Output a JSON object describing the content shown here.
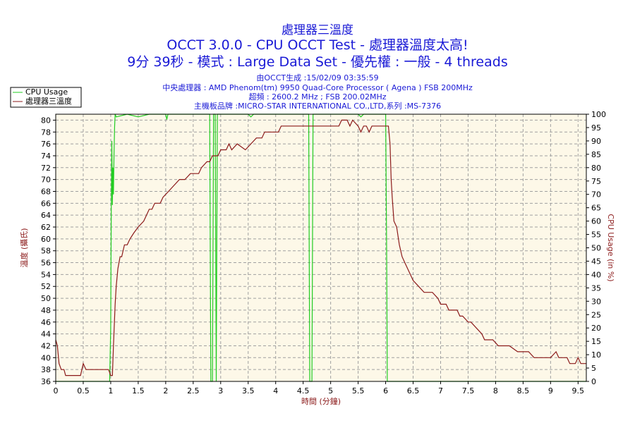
{
  "header": {
    "title1": "處理器三溫度",
    "title2": "OCCT 3.0.0 - CPU OCCT Test - 處理器溫度太高!",
    "title3": "9分 39秒 - 模式 : Large Data Set - 優先權 : 一般 - 4 threads",
    "info1": "由OCCT生成 :15/02/09 03:35:59",
    "info2": "中央處理器 : AMD Phenom(tm) 9950 Quad-Core Processor ( Agena ) FSB 200MHz",
    "info3": "超頻 : 2600.2 MHz ; FSB 200.02MHz",
    "info4": "主機板品牌 :MICRO-STAR INTERNATIONAL CO.,LTD,系列 :MS-7376"
  },
  "colors": {
    "temp": "#8b1a1a",
    "usage": "#22cc22",
    "plot_bg": "#fdf8e8",
    "grid": "#a0a0a0"
  },
  "chart_data": {
    "type": "line",
    "xlabel": "時間 (分鐘)",
    "ylabel_left": "溫度 (攝氏)",
    "ylabel_right": "CPU Usage (in %)",
    "xlim": [
      0,
      9.65
    ],
    "ylim_left": [
      36,
      81
    ],
    "ylim_right": [
      0,
      100
    ],
    "x_ticks": [
      "0",
      "0.5",
      "1",
      "1.5",
      "2",
      "2.5",
      "3",
      "3.5",
      "4",
      "4.5",
      "5",
      "5.5",
      "6",
      "6.5",
      "7",
      "7.5",
      "8",
      "8.5",
      "9",
      "9.5"
    ],
    "y_left_ticks": [
      "36",
      "38",
      "40",
      "42",
      "44",
      "46",
      "48",
      "50",
      "52",
      "54",
      "56",
      "58",
      "60",
      "62",
      "64",
      "66",
      "68",
      "70",
      "72",
      "74",
      "76",
      "78",
      "80"
    ],
    "y_right_ticks": [
      "0",
      "5",
      "10",
      "15",
      "20",
      "25",
      "30",
      "35",
      "40",
      "45",
      "50",
      "55",
      "60",
      "65",
      "70",
      "75",
      "80",
      "85",
      "90",
      "95",
      "100"
    ],
    "grid": true,
    "legend_position": "top-left",
    "series": [
      {
        "name": "CPU Usage",
        "axis": "right",
        "points": [
          [
            0,
            0
          ],
          [
            0.98,
            0
          ],
          [
            1.0,
            20
          ],
          [
            1.01,
            65
          ],
          [
            1.02,
            90
          ],
          [
            1.03,
            66
          ],
          [
            1.04,
            80
          ],
          [
            1.05,
            70
          ],
          [
            1.06,
            85
          ],
          [
            1.07,
            95
          ],
          [
            1.08,
            100
          ],
          [
            1.1,
            99
          ],
          [
            1.3,
            100
          ],
          [
            1.5,
            99
          ],
          [
            1.7,
            100
          ],
          [
            2.0,
            100
          ],
          [
            2.02,
            98
          ],
          [
            2.04,
            100
          ],
          [
            2.8,
            100
          ],
          [
            2.82,
            0
          ],
          [
            2.85,
            0
          ],
          [
            2.87,
            100
          ],
          [
            2.9,
            100
          ],
          [
            2.92,
            0
          ],
          [
            2.94,
            100
          ],
          [
            3.5,
            100
          ],
          [
            3.55,
            99
          ],
          [
            3.6,
            100
          ],
          [
            4.6,
            100
          ],
          [
            4.62,
            0
          ],
          [
            4.66,
            0
          ],
          [
            4.68,
            100
          ],
          [
            5.5,
            100
          ],
          [
            5.55,
            99
          ],
          [
            5.6,
            100
          ],
          [
            6.0,
            100
          ],
          [
            6.02,
            45
          ],
          [
            6.03,
            0
          ],
          [
            9.65,
            0
          ]
        ]
      },
      {
        "name": "處理器三溫度",
        "axis": "left",
        "points": [
          [
            0,
            43
          ],
          [
            0.03,
            42
          ],
          [
            0.06,
            39
          ],
          [
            0.1,
            38
          ],
          [
            0.15,
            38
          ],
          [
            0.18,
            37
          ],
          [
            0.45,
            37
          ],
          [
            0.5,
            39
          ],
          [
            0.55,
            38
          ],
          [
            0.96,
            38
          ],
          [
            1.0,
            37
          ],
          [
            1.03,
            37
          ],
          [
            1.05,
            42
          ],
          [
            1.08,
            49
          ],
          [
            1.1,
            52
          ],
          [
            1.13,
            55
          ],
          [
            1.17,
            57
          ],
          [
            1.2,
            57
          ],
          [
            1.25,
            59
          ],
          [
            1.3,
            59
          ],
          [
            1.35,
            60
          ],
          [
            1.42,
            61
          ],
          [
            1.5,
            62
          ],
          [
            1.6,
            63
          ],
          [
            1.65,
            64
          ],
          [
            1.7,
            65
          ],
          [
            1.75,
            65
          ],
          [
            1.8,
            66
          ],
          [
            1.9,
            66
          ],
          [
            1.95,
            67
          ],
          [
            2.05,
            68
          ],
          [
            2.15,
            69
          ],
          [
            2.25,
            70
          ],
          [
            2.35,
            70
          ],
          [
            2.45,
            71
          ],
          [
            2.6,
            71
          ],
          [
            2.65,
            72
          ],
          [
            2.75,
            73
          ],
          [
            2.8,
            73
          ],
          [
            2.85,
            74
          ],
          [
            2.95,
            74
          ],
          [
            3.0,
            75
          ],
          [
            3.1,
            75
          ],
          [
            3.15,
            76
          ],
          [
            3.2,
            75
          ],
          [
            3.3,
            76
          ],
          [
            3.45,
            75
          ],
          [
            3.55,
            76
          ],
          [
            3.65,
            77
          ],
          [
            3.75,
            77
          ],
          [
            3.8,
            78
          ],
          [
            3.9,
            78
          ],
          [
            4.05,
            78
          ],
          [
            4.1,
            79
          ],
          [
            4.5,
            79
          ],
          [
            4.6,
            79
          ],
          [
            4.65,
            79
          ],
          [
            4.75,
            79
          ],
          [
            5.15,
            79
          ],
          [
            5.2,
            80
          ],
          [
            5.3,
            80
          ],
          [
            5.35,
            79
          ],
          [
            5.4,
            80
          ],
          [
            5.5,
            79
          ],
          [
            5.55,
            78
          ],
          [
            5.6,
            79
          ],
          [
            5.65,
            79
          ],
          [
            5.7,
            78
          ],
          [
            5.75,
            79
          ],
          [
            5.8,
            79
          ],
          [
            5.95,
            79
          ],
          [
            6.0,
            79
          ],
          [
            6.05,
            79
          ],
          [
            6.08,
            76
          ],
          [
            6.1,
            70
          ],
          [
            6.12,
            67
          ],
          [
            6.15,
            63
          ],
          [
            6.2,
            62
          ],
          [
            6.25,
            59
          ],
          [
            6.3,
            57
          ],
          [
            6.35,
            56
          ],
          [
            6.4,
            55
          ],
          [
            6.45,
            54
          ],
          [
            6.5,
            53
          ],
          [
            6.6,
            52
          ],
          [
            6.7,
            51
          ],
          [
            6.85,
            51
          ],
          [
            6.95,
            50
          ],
          [
            7.0,
            49
          ],
          [
            7.1,
            49
          ],
          [
            7.15,
            48
          ],
          [
            7.3,
            48
          ],
          [
            7.35,
            47
          ],
          [
            7.4,
            47
          ],
          [
            7.5,
            46
          ],
          [
            7.55,
            46
          ],
          [
            7.65,
            45
          ],
          [
            7.75,
            44
          ],
          [
            7.8,
            43
          ],
          [
            7.95,
            43
          ],
          [
            8.05,
            42
          ],
          [
            8.25,
            42
          ],
          [
            8.4,
            41
          ],
          [
            8.6,
            41
          ],
          [
            8.7,
            40
          ],
          [
            8.8,
            40
          ],
          [
            9.0,
            40
          ],
          [
            9.1,
            41
          ],
          [
            9.15,
            40
          ],
          [
            9.3,
            40
          ],
          [
            9.35,
            39
          ],
          [
            9.45,
            39
          ],
          [
            9.5,
            40
          ],
          [
            9.55,
            39
          ],
          [
            9.65,
            39
          ]
        ]
      }
    ]
  }
}
